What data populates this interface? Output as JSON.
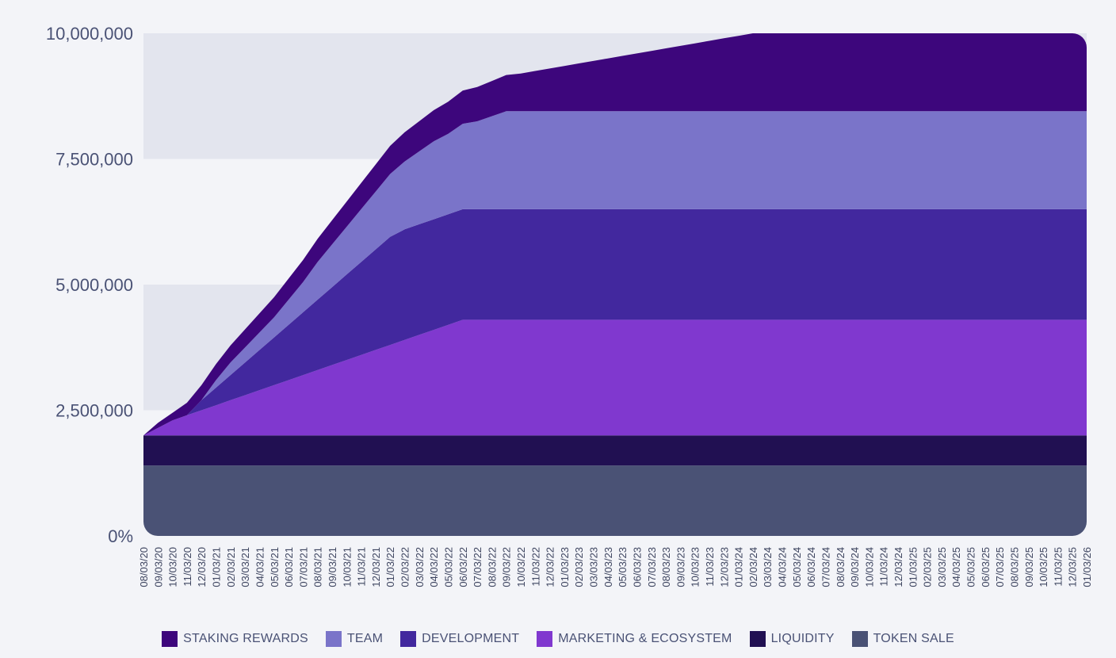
{
  "chart_data": {
    "type": "area",
    "subtype": "stacked",
    "title": "",
    "xlabel": "",
    "ylabel": "",
    "ylim": [
      0,
      10000000
    ],
    "y_ticks": [
      "0%",
      "2,500,000",
      "5,000,000",
      "7,500,000",
      "10,000,000"
    ],
    "y_tick_values": [
      0,
      2500000,
      5000000,
      7500000,
      10000000
    ],
    "categories": [
      "08/03/20",
      "09/03/20",
      "10/03/20",
      "11/03/20",
      "12/03/20",
      "01/03/21",
      "02/03/21",
      "03/03/21",
      "04/03/21",
      "05/03/21",
      "06/03/21",
      "07/03/21",
      "08/03/21",
      "09/03/21",
      "10/03/21",
      "11/03/21",
      "12/03/21",
      "01/03/22",
      "02/03/22",
      "03/03/22",
      "04/03/22",
      "05/03/22",
      "06/03/22",
      "07/03/22",
      "08/03/22",
      "09/03/22",
      "10/03/22",
      "11/03/22",
      "12/03/22",
      "01/03/23",
      "02/03/23",
      "03/03/23",
      "04/03/23",
      "05/03/23",
      "06/03/23",
      "07/03/23",
      "08/03/23",
      "09/03/23",
      "10/03/23",
      "11/03/23",
      "12/03/23",
      "01/03/24",
      "02/03/24",
      "03/03/24",
      "04/03/24",
      "05/03/24",
      "06/03/24",
      "07/03/24",
      "08/03/24",
      "09/03/24",
      "10/03/24",
      "11/03/24",
      "12/03/24",
      "01/03/25",
      "02/03/25",
      "03/03/25",
      "04/03/25",
      "05/03/25",
      "06/03/25",
      "07/03/25",
      "08/03/25",
      "09/03/25",
      "10/03/25",
      "11/03/25",
      "12/03/25",
      "01/03/26"
    ],
    "series": [
      {
        "name": "TOKEN SALE",
        "color": "#4a5275",
        "values": [
          1400000,
          1400000,
          1400000,
          1400000,
          1400000,
          1400000,
          1400000,
          1400000,
          1400000,
          1400000,
          1400000,
          1400000,
          1400000,
          1400000,
          1400000,
          1400000,
          1400000,
          1400000,
          1400000,
          1400000,
          1400000,
          1400000,
          1400000,
          1400000,
          1400000,
          1400000,
          1400000,
          1400000,
          1400000,
          1400000,
          1400000,
          1400000,
          1400000,
          1400000,
          1400000,
          1400000,
          1400000,
          1400000,
          1400000,
          1400000,
          1400000,
          1400000,
          1400000,
          1400000,
          1400000,
          1400000,
          1400000,
          1400000,
          1400000,
          1400000,
          1400000,
          1400000,
          1400000,
          1400000,
          1400000,
          1400000,
          1400000,
          1400000,
          1400000,
          1400000,
          1400000,
          1400000,
          1400000,
          1400000,
          1400000,
          1400000
        ]
      },
      {
        "name": "LIQUIDITY",
        "color": "#211052",
        "values": [
          600000,
          600000,
          600000,
          600000,
          600000,
          600000,
          600000,
          600000,
          600000,
          600000,
          600000,
          600000,
          600000,
          600000,
          600000,
          600000,
          600000,
          600000,
          600000,
          600000,
          600000,
          600000,
          600000,
          600000,
          600000,
          600000,
          600000,
          600000,
          600000,
          600000,
          600000,
          600000,
          600000,
          600000,
          600000,
          600000,
          600000,
          600000,
          600000,
          600000,
          600000,
          600000,
          600000,
          600000,
          600000,
          600000,
          600000,
          600000,
          600000,
          600000,
          600000,
          600000,
          600000,
          600000,
          600000,
          600000,
          600000,
          600000,
          600000,
          600000,
          600000,
          600000,
          600000,
          600000,
          600000,
          600000
        ]
      },
      {
        "name": "MARKETING & ECOSYSTEM",
        "color": "#8038cf",
        "values": [
          0,
          150000,
          300000,
          400000,
          500000,
          600000,
          700000,
          800000,
          900000,
          1000000,
          1100000,
          1200000,
          1300000,
          1400000,
          1500000,
          1600000,
          1700000,
          1800000,
          1900000,
          2000000,
          2100000,
          2200000,
          2300000,
          2300000,
          2300000,
          2300000,
          2300000,
          2300000,
          2300000,
          2300000,
          2300000,
          2300000,
          2300000,
          2300000,
          2300000,
          2300000,
          2300000,
          2300000,
          2300000,
          2300000,
          2300000,
          2300000,
          2300000,
          2300000,
          2300000,
          2300000,
          2300000,
          2300000,
          2300000,
          2300000,
          2300000,
          2300000,
          2300000,
          2300000,
          2300000,
          2300000,
          2300000,
          2300000,
          2300000,
          2300000,
          2300000,
          2300000,
          2300000,
          2300000,
          2300000,
          2300000
        ]
      },
      {
        "name": "DEVELOPMENT",
        "color": "#42289e",
        "values": [
          0,
          0,
          0,
          0,
          200000,
          350000,
          500000,
          650000,
          800000,
          950000,
          1100000,
          1250000,
          1400000,
          1550000,
          1700000,
          1850000,
          2000000,
          2150000,
          2200000,
          2200000,
          2200000,
          2200000,
          2200000,
          2200000,
          2200000,
          2200000,
          2200000,
          2200000,
          2200000,
          2200000,
          2200000,
          2200000,
          2200000,
          2200000,
          2200000,
          2200000,
          2200000,
          2200000,
          2200000,
          2200000,
          2200000,
          2200000,
          2200000,
          2200000,
          2200000,
          2200000,
          2200000,
          2200000,
          2200000,
          2200000,
          2200000,
          2200000,
          2200000,
          2200000,
          2200000,
          2200000,
          2200000,
          2200000,
          2200000,
          2200000,
          2200000,
          2200000,
          2200000,
          2200000,
          2200000,
          2200000
        ]
      },
      {
        "name": "TEAM",
        "color": "#7a74c9",
        "values": [
          0,
          0,
          0,
          0,
          0,
          150000,
          250000,
          300000,
          350000,
          400000,
          500000,
          600000,
          750000,
          850000,
          950000,
          1050000,
          1150000,
          1250000,
          1350000,
          1450000,
          1550000,
          1600000,
          1700000,
          1750000,
          1850000,
          1950000,
          1950000,
          1950000,
          1950000,
          1950000,
          1950000,
          1950000,
          1950000,
          1950000,
          1950000,
          1950000,
          1950000,
          1950000,
          1950000,
          1950000,
          1950000,
          1950000,
          1950000,
          1950000,
          1950000,
          1950000,
          1950000,
          1950000,
          1950000,
          1950000,
          1950000,
          1950000,
          1950000,
          1950000,
          1950000,
          1950000,
          1950000,
          1950000,
          1950000,
          1950000,
          1950000,
          1950000,
          1950000,
          1950000,
          1950000,
          1950000
        ]
      },
      {
        "name": "STAKING REWARDS",
        "color": "#3d067c",
        "values": [
          0,
          100000,
          150000,
          250000,
          300000,
          320000,
          340000,
          360000,
          380000,
          400000,
          420000,
          440000,
          460000,
          480000,
          500000,
          520000,
          540000,
          560000,
          580000,
          600000,
          620000,
          640000,
          660000,
          680000,
          700000,
          720000,
          750000,
          800000,
          850000,
          900000,
          950000,
          1000000,
          1050000,
          1100000,
          1150000,
          1200000,
          1250000,
          1300000,
          1350000,
          1400000,
          1450000,
          1500000,
          1550000,
          1600000,
          1650000,
          1700000,
          1750000,
          1800000,
          1850000,
          1900000,
          1950000,
          2000000,
          2050000,
          2100000,
          2150000,
          2200000,
          2250000,
          2300000,
          2350000,
          2400000,
          2450000,
          2500000,
          2550000,
          2600000,
          2650000,
          2700000
        ]
      }
    ],
    "legend": {
      "placement": "bottom-center",
      "order": [
        "STAKING REWARDS",
        "TEAM",
        "DEVELOPMENT",
        "MARKETING & ECOSYSTEM",
        "LIQUIDITY",
        "TOKEN SALE"
      ]
    },
    "colors": {
      "band_light": "#e3e5ee",
      "band_dark": "#f3f4f8",
      "tick_text": "#4a5275"
    },
    "grid": false
  }
}
